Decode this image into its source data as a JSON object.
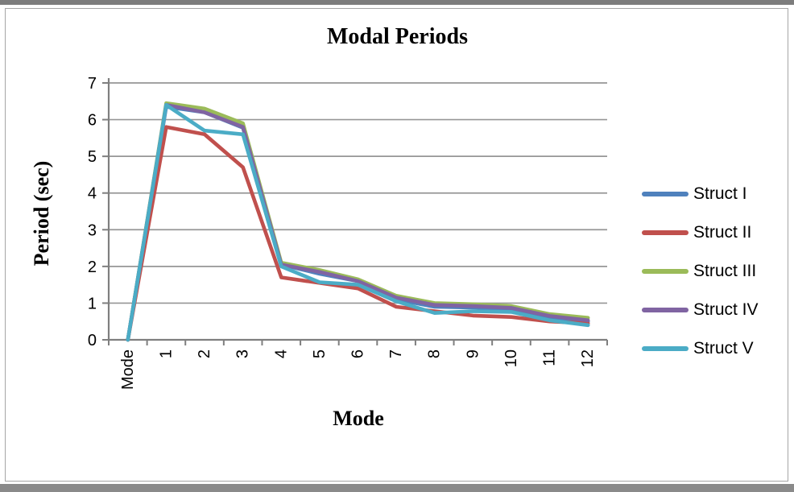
{
  "frame": {
    "background": "#ffffff",
    "border_color": "#a6a6a6",
    "edge_bar_color": "#7d7d7d"
  },
  "chart_data": {
    "type": "line",
    "title": "Modal Periods",
    "xlabel": "Mode",
    "ylabel": "Period (sec)",
    "ylim": [
      0,
      7
    ],
    "yticks": [
      0,
      1,
      2,
      3,
      4,
      5,
      6,
      7
    ],
    "grid": "horizontal",
    "grid_color": "#969696",
    "axis_color": "#7f7f7f",
    "text_color": "#000000",
    "x_tick_rotation": -90,
    "legend_position": "right",
    "categories": [
      "Mode",
      "1",
      "2",
      "3",
      "4",
      "5",
      "6",
      "7",
      "8",
      "9",
      "10",
      "11",
      "12"
    ],
    "series": [
      {
        "name": "Struct I",
        "color": "#4F81BD",
        "values": [
          0,
          6.35,
          6.2,
          5.78,
          2.05,
          1.8,
          1.6,
          1.1,
          0.9,
          0.88,
          0.84,
          0.62,
          0.5
        ]
      },
      {
        "name": "Struct II",
        "color": "#C0504D",
        "values": [
          0,
          5.8,
          5.6,
          4.7,
          1.7,
          1.55,
          1.4,
          0.9,
          0.78,
          0.66,
          0.62,
          0.5,
          0.45
        ]
      },
      {
        "name": "Struct III",
        "color": "#9BBB59",
        "values": [
          0,
          6.45,
          6.3,
          5.9,
          2.1,
          1.9,
          1.65,
          1.2,
          1.0,
          0.97,
          0.92,
          0.7,
          0.6
        ]
      },
      {
        "name": "Struct IV",
        "color": "#8064A2",
        "values": [
          0,
          6.4,
          6.2,
          5.8,
          2.05,
          1.85,
          1.6,
          1.15,
          0.95,
          0.92,
          0.87,
          0.65,
          0.53
        ]
      },
      {
        "name": "Struct V",
        "color": "#4BACC6",
        "values": [
          0,
          6.4,
          5.7,
          5.6,
          2.0,
          1.57,
          1.5,
          1.05,
          0.73,
          0.78,
          0.76,
          0.53,
          0.4
        ]
      }
    ]
  }
}
